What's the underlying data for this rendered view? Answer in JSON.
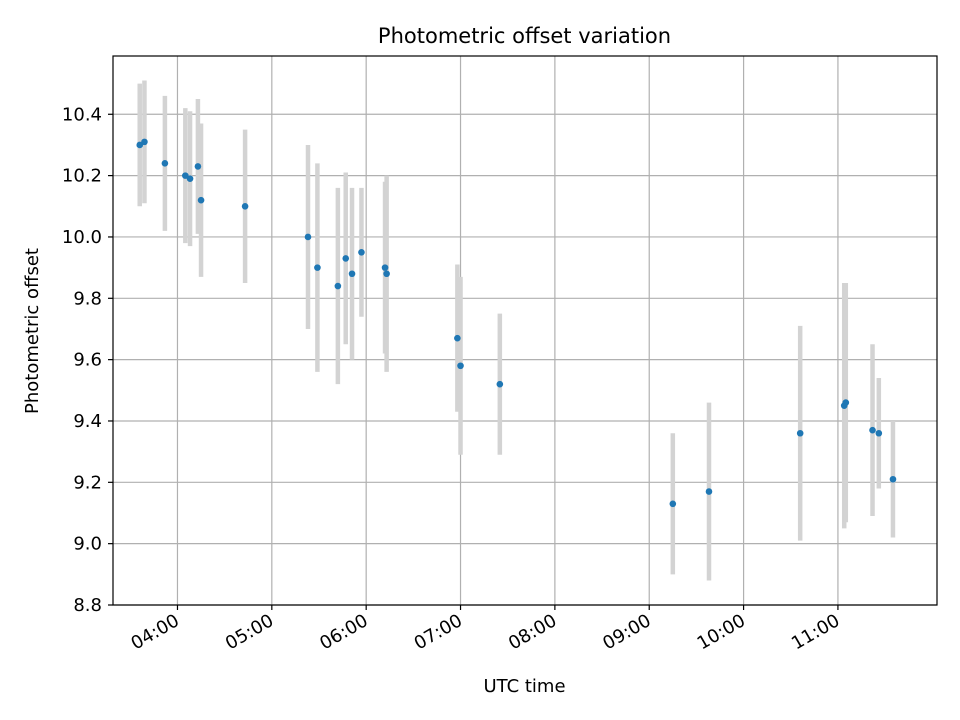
{
  "chart_data": {
    "type": "scatter",
    "title": "Photometric offset variation",
    "xlabel": "UTC time",
    "ylabel": "Photometric offset",
    "x_is_time": true,
    "xlim": [
      "03:19",
      "12:03"
    ],
    "ylim": [
      8.8,
      10.59
    ],
    "grid": true,
    "x_ticks": [
      "04:00",
      "05:00",
      "06:00",
      "07:00",
      "08:00",
      "09:00",
      "10:00",
      "11:00"
    ],
    "y_ticks": [
      "8.8",
      "9.0",
      "9.2",
      "9.4",
      "9.6",
      "9.8",
      "10.0",
      "10.2",
      "10.4"
    ],
    "colors": {
      "point": "#1f77b4",
      "errorbar": "#d3d3d3",
      "grid": "#b0b0b0"
    },
    "series": [
      {
        "points": [
          {
            "x": "03:36",
            "y": 10.3,
            "err": 0.2
          },
          {
            "x": "03:39",
            "y": 10.31,
            "err": 0.2
          },
          {
            "x": "03:52",
            "y": 10.24,
            "err": 0.22
          },
          {
            "x": "04:05",
            "y": 10.2,
            "err": 0.22
          },
          {
            "x": "04:08",
            "y": 10.19,
            "err": 0.22
          },
          {
            "x": "04:13",
            "y": 10.23,
            "err": 0.22
          },
          {
            "x": "04:15",
            "y": 10.12,
            "err": 0.25
          },
          {
            "x": "04:43",
            "y": 10.1,
            "err": 0.25
          },
          {
            "x": "05:23",
            "y": 10.0,
            "err": 0.3
          },
          {
            "x": "05:29",
            "y": 9.9,
            "err": 0.34
          },
          {
            "x": "05:42",
            "y": 9.84,
            "err": 0.32
          },
          {
            "x": "05:47",
            "y": 9.93,
            "err": 0.28
          },
          {
            "x": "05:51",
            "y": 9.88,
            "err": 0.28
          },
          {
            "x": "05:57",
            "y": 9.95,
            "err": 0.21
          },
          {
            "x": "06:12",
            "y": 9.9,
            "err": 0.28
          },
          {
            "x": "06:13",
            "y": 9.88,
            "err": 0.32
          },
          {
            "x": "06:58",
            "y": 9.67,
            "err": 0.24
          },
          {
            "x": "07:00",
            "y": 9.58,
            "err": 0.29
          },
          {
            "x": "07:25",
            "y": 9.52,
            "err": 0.23
          },
          {
            "x": "09:15",
            "y": 9.13,
            "err": 0.23
          },
          {
            "x": "09:38",
            "y": 9.17,
            "err": 0.29
          },
          {
            "x": "10:36",
            "y": 9.36,
            "err": 0.35
          },
          {
            "x": "11:04",
            "y": 9.45,
            "err": 0.4
          },
          {
            "x": "11:05",
            "y": 9.46,
            "err": 0.39
          },
          {
            "x": "11:22",
            "y": 9.37,
            "err": 0.28
          },
          {
            "x": "11:26",
            "y": 9.36,
            "err": 0.18
          },
          {
            "x": "11:35",
            "y": 9.21,
            "err": 0.19
          }
        ]
      }
    ]
  }
}
